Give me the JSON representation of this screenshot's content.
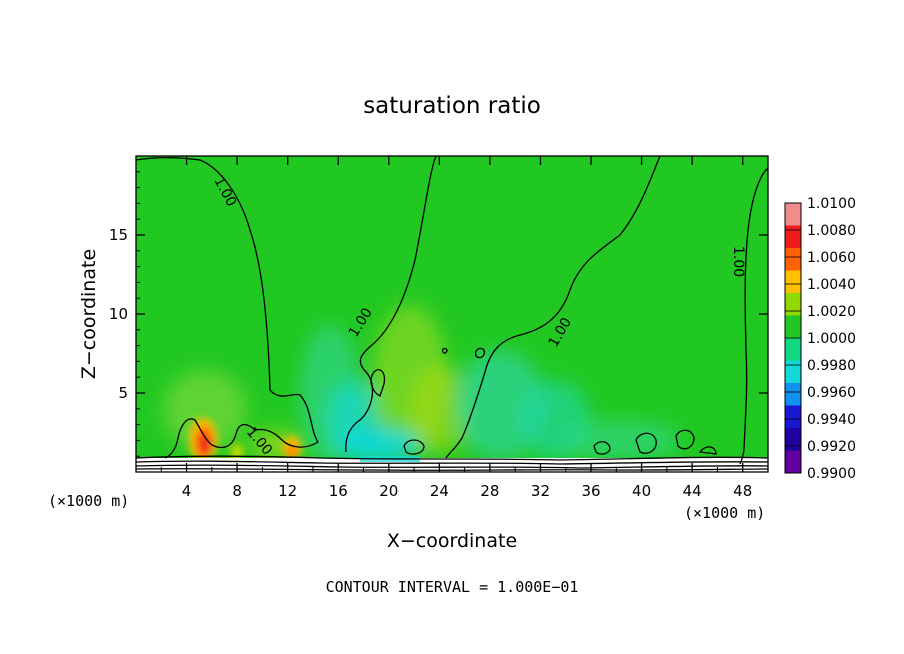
{
  "chart_data": {
    "type": "heatmap",
    "title": "saturation ratio",
    "xlabel": "X−coordinate",
    "ylabel": "Z−coordinate",
    "x_unit_left": "(×1000 m)",
    "x_unit_right": "(×1000 m)",
    "xlim": [
      0,
      50
    ],
    "ylim": [
      0,
      20
    ],
    "x_ticks": [
      4,
      8,
      12,
      16,
      20,
      24,
      28,
      32,
      36,
      40,
      44,
      48
    ],
    "x_tick_labels": [
      "4",
      "8",
      "12",
      "16",
      "20",
      "24",
      "28",
      "32",
      "36",
      "40",
      "44",
      "48"
    ],
    "y_ticks": [
      5,
      10,
      15
    ],
    "y_tick_labels": [
      "5",
      "10",
      "15"
    ],
    "footer": "CONTOUR INTERVAL = 1.000E−01",
    "contour_labels": [
      "1.00",
      "1.00",
      "1.00",
      "1.00",
      "1.00"
    ],
    "colorbar": {
      "labels": [
        "1.0100",
        "1.0080",
        "1.0060",
        "1.0040",
        "1.0020",
        "1.0000",
        "0.9980",
        "0.9960",
        "0.9940",
        "0.9920",
        "0.9900"
      ],
      "colors": [
        "#f08c8c",
        "#ee1c1c",
        "#ff6000",
        "#ffc000",
        "#90d800",
        "#22c822",
        "#10d880",
        "#12d8d8",
        "#1090f0",
        "#1818d0",
        "#2000a0",
        "#6000a0"
      ]
    },
    "background_value": 1.0,
    "features": [
      {
        "x": 5.2,
        "z": 1.6,
        "value": 1.0065,
        "color": "#ee2a10"
      },
      {
        "x": 11.8,
        "z": 1.0,
        "value": 1.004,
        "color": "#ff9c00"
      },
      {
        "x": 18.5,
        "z": 2.5,
        "value": 0.997,
        "color": "#1cd8c0"
      },
      {
        "x": 22.0,
        "z": 5.5,
        "value": 1.0015,
        "color": "#88d820"
      },
      {
        "x": 30.0,
        "z": 4.0,
        "value": 0.998,
        "color": "#20d8a0"
      }
    ]
  }
}
